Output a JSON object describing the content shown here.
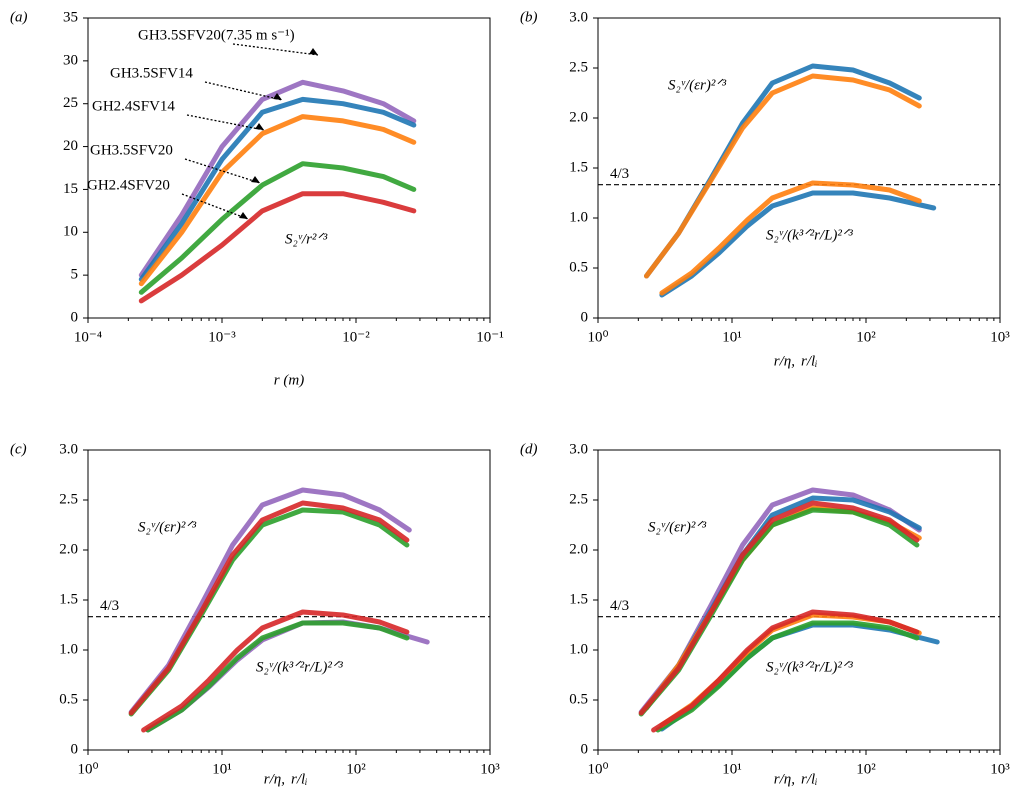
{
  "chart_data": [
    {
      "type": "line",
      "panel": "(a)",
      "xlog": true,
      "xlabel": "r (m)",
      "text": "S₂ᵛ/r²ᐟ³",
      "xlim": [
        0.0001,
        0.1
      ],
      "ylim": [
        0,
        35
      ],
      "xticks": [
        {
          "value": 0.0001,
          "label": "10⁻⁴"
        },
        {
          "value": 0.001,
          "label": "10⁻³"
        },
        {
          "value": 0.01,
          "label": "10⁻²"
        },
        {
          "value": 0.1,
          "label": "10⁻¹"
        }
      ],
      "yticks": [
        0,
        5,
        10,
        15,
        20,
        25,
        30,
        35
      ],
      "series": [
        {
          "name": "GH3.5SFV20(7.35 m s⁻¹)",
          "color": "#9467bd",
          "x": [
            0.00025,
            0.0005,
            0.001,
            0.002,
            0.004,
            0.008,
            0.016,
            0.027
          ],
          "values": [
            5,
            12,
            20,
            25.5,
            27.5,
            26.5,
            25,
            23
          ]
        },
        {
          "name": "GH3.5SFV14",
          "color": "#1f77b4",
          "x": [
            0.00025,
            0.0005,
            0.001,
            0.002,
            0.004,
            0.008,
            0.016,
            0.027
          ],
          "values": [
            4.5,
            11,
            18.5,
            24,
            25.5,
            25,
            24,
            22.5
          ]
        },
        {
          "name": "GH2.4SFV14",
          "color": "#ff7f0e",
          "x": [
            0.00025,
            0.0005,
            0.001,
            0.002,
            0.004,
            0.008,
            0.016,
            0.027
          ],
          "values": [
            4,
            10,
            17,
            21.5,
            23.5,
            23,
            22,
            20.5
          ]
        },
        {
          "name": "GH3.5SFV20",
          "color": "#2ca02c",
          "x": [
            0.00025,
            0.0005,
            0.001,
            0.002,
            0.004,
            0.008,
            0.016,
            0.027
          ],
          "values": [
            3,
            7,
            11.5,
            15.5,
            18,
            17.5,
            16.5,
            15
          ]
        },
        {
          "name": "GH2.4SFV20",
          "color": "#d62728",
          "x": [
            0.00025,
            0.0005,
            0.001,
            0.002,
            0.004,
            0.008,
            0.016,
            0.027
          ],
          "values": [
            2,
            5,
            8.5,
            12.5,
            14.5,
            14.5,
            13.5,
            12.5
          ]
        }
      ]
    },
    {
      "type": "line",
      "panel": "(b)",
      "xlog": true,
      "xlabel": "r/η,",
      "xlabel_scaled": "r/lᵢ",
      "text_upper": "S₂ᵛ/(εr)²ᐟ³",
      "text_lower": "S₂ᵛ/(k³ᐟ²r/L)²ᐟ³",
      "hline": {
        "value": 1.3333,
        "label": "4/3"
      },
      "xlim": [
        1,
        1000
      ],
      "ylim": [
        0,
        3
      ],
      "xticks": [
        {
          "value": 1,
          "label": "10⁰"
        },
        {
          "value": 10,
          "label": "10¹"
        },
        {
          "value": 100,
          "label": "10²"
        },
        {
          "value": 1000,
          "label": "10³"
        }
      ],
      "yticks": [
        0,
        0.5,
        {
          "value": 1,
          "label": "1.0"
        },
        1.5,
        {
          "value": 2,
          "label": "2.0"
        },
        2.5,
        {
          "value": 3,
          "label": "3.0"
        }
      ],
      "series": [
        {
          "color": "#1f77b4",
          "x": [
            2.3,
            4,
            7,
            12,
            20,
            40,
            80,
            150,
            250
          ],
          "values": [
            0.42,
            0.85,
            1.4,
            1.95,
            2.35,
            2.52,
            2.48,
            2.35,
            2.2
          ]
        },
        {
          "color": "#ff7f0e",
          "x": [
            2.3,
            4,
            7,
            12,
            20,
            40,
            80,
            150,
            250
          ],
          "values": [
            0.42,
            0.85,
            1.38,
            1.9,
            2.25,
            2.42,
            2.38,
            2.28,
            2.12
          ]
        },
        {
          "color": "#1f77b4",
          "x": [
            3,
            5,
            8,
            13,
            20,
            40,
            80,
            150,
            320
          ],
          "values": [
            0.23,
            0.42,
            0.65,
            0.92,
            1.12,
            1.25,
            1.25,
            1.2,
            1.1
          ]
        },
        {
          "color": "#ff7f0e",
          "x": [
            3,
            5,
            8,
            13,
            20,
            40,
            80,
            150,
            250
          ],
          "values": [
            0.25,
            0.45,
            0.7,
            0.98,
            1.2,
            1.35,
            1.33,
            1.28,
            1.17
          ]
        }
      ]
    },
    {
      "type": "line",
      "panel": "(c)",
      "xlog": true,
      "xlabel": "r/η,",
      "xlabel_scaled": "r/lᵢ",
      "text_upper": "S₂ᵛ/(εr)²ᐟ³",
      "text_lower": "S₂ᵛ/(k³ᐟ²r/L)²ᐟ³",
      "hline": {
        "value": 1.3333,
        "label": "4/3"
      },
      "xlim": [
        1,
        1000
      ],
      "ylim": [
        0,
        3
      ],
      "xticks": [
        {
          "value": 1,
          "label": "10⁰"
        },
        {
          "value": 10,
          "label": "10¹"
        },
        {
          "value": 100,
          "label": "10²"
        },
        {
          "value": 1000,
          "label": "10³"
        }
      ],
      "yticks": [
        0,
        0.5,
        {
          "value": 1,
          "label": "1.0"
        },
        1.5,
        {
          "value": 2,
          "label": "2.0"
        },
        2.5,
        {
          "value": 3,
          "label": "3.0"
        }
      ],
      "series": [
        {
          "color": "#9467bd",
          "x": [
            2.1,
            4,
            7,
            12,
            20,
            40,
            80,
            150,
            250
          ],
          "values": [
            0.38,
            0.85,
            1.45,
            2.05,
            2.45,
            2.6,
            2.55,
            2.4,
            2.2
          ]
        },
        {
          "color": "#2ca02c",
          "x": [
            2.1,
            4,
            7,
            12,
            20,
            40,
            80,
            150,
            240
          ],
          "values": [
            0.36,
            0.8,
            1.35,
            1.9,
            2.25,
            2.4,
            2.38,
            2.25,
            2.05
          ]
        },
        {
          "color": "#d62728",
          "x": [
            2.1,
            4,
            7,
            12,
            20,
            40,
            80,
            150,
            240
          ],
          "values": [
            0.37,
            0.82,
            1.38,
            1.95,
            2.3,
            2.47,
            2.42,
            2.3,
            2.1
          ]
        },
        {
          "color": "#9467bd",
          "x": [
            2.8,
            5,
            8,
            13,
            20,
            40,
            80,
            150,
            340
          ],
          "values": [
            0.2,
            0.4,
            0.63,
            0.9,
            1.1,
            1.27,
            1.28,
            1.22,
            1.08
          ]
        },
        {
          "color": "#2ca02c",
          "x": [
            2.8,
            5,
            8,
            13,
            20,
            40,
            80,
            150,
            240
          ],
          "values": [
            0.2,
            0.4,
            0.64,
            0.92,
            1.12,
            1.27,
            1.27,
            1.22,
            1.12
          ]
        },
        {
          "color": "#d62728",
          "x": [
            2.6,
            5,
            8,
            13,
            20,
            40,
            80,
            150,
            240
          ],
          "values": [
            0.2,
            0.44,
            0.7,
            1.0,
            1.22,
            1.38,
            1.35,
            1.28,
            1.18
          ]
        }
      ]
    },
    {
      "type": "line",
      "panel": "(d)",
      "xlog": true,
      "xlabel": "r/η,",
      "xlabel_scaled": "r/lᵢ",
      "text_upper": "S₂ᵛ/(εr)²ᐟ³",
      "text_lower": "S₂ᵛ/(k³ᐟ²r/L)²ᐟ³",
      "hline": {
        "value": 1.3333,
        "label": "4/3"
      },
      "xlim": [
        1,
        1000
      ],
      "ylim": [
        0,
        3
      ],
      "xticks": [
        {
          "value": 1,
          "label": "10⁰"
        },
        {
          "value": 10,
          "label": "10¹"
        },
        {
          "value": 100,
          "label": "10²"
        },
        {
          "value": 1000,
          "label": "10³"
        }
      ],
      "yticks": [
        0,
        0.5,
        {
          "value": 1,
          "label": "1.0"
        },
        1.5,
        {
          "value": 2,
          "label": "2.0"
        },
        2.5,
        {
          "value": 3,
          "label": "3.0"
        }
      ],
      "series": [
        {
          "color": "#9467bd",
          "x": [
            2.1,
            4,
            7,
            12,
            20,
            40,
            80,
            150,
            250
          ],
          "values": [
            0.38,
            0.85,
            1.45,
            2.05,
            2.45,
            2.6,
            2.55,
            2.4,
            2.2
          ]
        },
        {
          "color": "#1f77b4",
          "x": [
            2.3,
            4,
            7,
            12,
            20,
            40,
            80,
            150,
            250
          ],
          "values": [
            0.42,
            0.85,
            1.4,
            1.95,
            2.35,
            2.52,
            2.5,
            2.38,
            2.22
          ]
        },
        {
          "color": "#ff7f0e",
          "x": [
            2.3,
            4,
            7,
            12,
            20,
            40,
            80,
            150,
            250
          ],
          "values": [
            0.42,
            0.85,
            1.38,
            1.9,
            2.25,
            2.42,
            2.38,
            2.28,
            2.12
          ]
        },
        {
          "color": "#2ca02c",
          "x": [
            2.1,
            4,
            7,
            12,
            20,
            40,
            80,
            150,
            240
          ],
          "values": [
            0.36,
            0.8,
            1.35,
            1.9,
            2.25,
            2.4,
            2.38,
            2.25,
            2.05
          ]
        },
        {
          "color": "#d62728",
          "x": [
            2.1,
            4,
            7,
            12,
            20,
            40,
            80,
            150,
            240
          ],
          "values": [
            0.37,
            0.82,
            1.38,
            1.95,
            2.3,
            2.47,
            2.42,
            2.3,
            2.1
          ]
        },
        {
          "color": "#1f77b4",
          "x": [
            3,
            5,
            8,
            13,
            20,
            40,
            80,
            150,
            340
          ],
          "values": [
            0.21,
            0.42,
            0.65,
            0.92,
            1.12,
            1.25,
            1.25,
            1.2,
            1.08
          ]
        },
        {
          "color": "#2ca02c",
          "x": [
            2.8,
            5,
            8,
            13,
            20,
            40,
            80,
            150,
            240
          ],
          "values": [
            0.2,
            0.4,
            0.64,
            0.92,
            1.12,
            1.27,
            1.27,
            1.22,
            1.12
          ]
        },
        {
          "color": "#ff7f0e",
          "x": [
            3,
            5,
            8,
            13,
            20,
            40,
            80,
            150,
            250
          ],
          "values": [
            0.25,
            0.45,
            0.7,
            0.98,
            1.2,
            1.35,
            1.33,
            1.28,
            1.17
          ]
        },
        {
          "color": "#d62728",
          "x": [
            2.6,
            5,
            8,
            13,
            20,
            40,
            80,
            150,
            240
          ],
          "values": [
            0.2,
            0.44,
            0.7,
            1.0,
            1.22,
            1.38,
            1.35,
            1.28,
            1.18
          ]
        }
      ]
    }
  ]
}
